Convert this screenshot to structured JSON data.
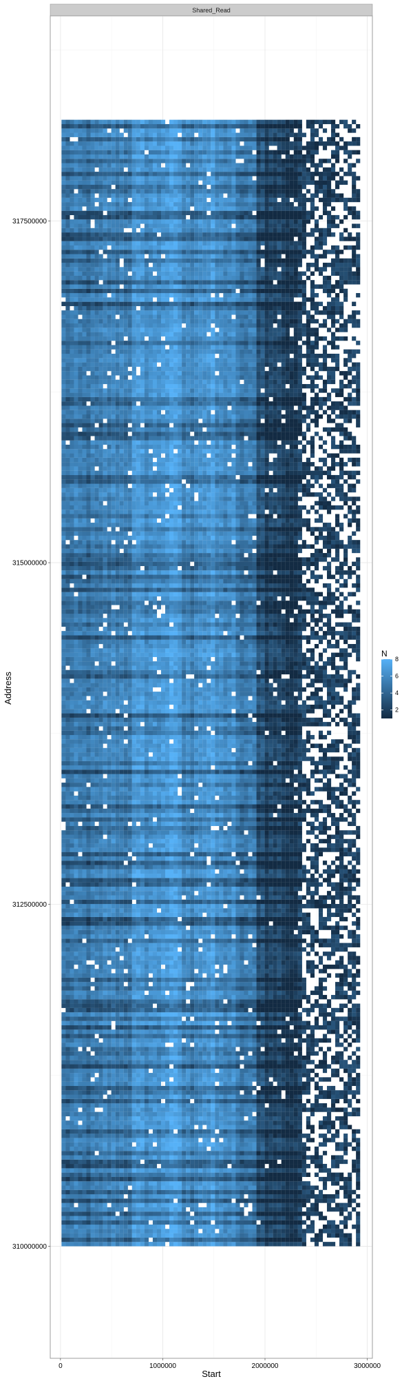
{
  "chart_data": {
    "type": "heatmap",
    "facet_label": "Shared_Read",
    "xlabel": "Start",
    "ylabel": "Address",
    "xlim": [
      -100000,
      3050000
    ],
    "ylim": [
      309180000,
      319000000
    ],
    "x_ticks": [
      0,
      1000000,
      2000000,
      3000000
    ],
    "x_tick_labels": [
      "0",
      "1000000",
      "2000000",
      "3000000"
    ],
    "y_ticks": [
      310000000,
      312500000,
      315000000,
      317500000
    ],
    "y_tick_labels": [
      "310000000",
      "312500000",
      "315000000",
      "317500000"
    ],
    "data_x_range": [
      10000,
      2930000
    ],
    "data_y_range": [
      310000000,
      318240000
    ],
    "dense_region_end_x": 2370000,
    "grid": true,
    "color_scale": {
      "title": "N",
      "low": 1,
      "high": 8,
      "low_color": "#132B43",
      "high_color": "#56B1F7",
      "breaks": [
        2,
        4,
        6,
        8
      ],
      "break_labels": [
        "2",
        "4",
        "6",
        "8"
      ]
    },
    "column_profile": {
      "x_breaks": [
        10000,
        400000,
        700000,
        1000000,
        1200000,
        1300000,
        1500000,
        1700000,
        1900000,
        2000000,
        2200000,
        2370000,
        2930000
      ],
      "mean_n": [
        5.2,
        5.8,
        6.6,
        7.2,
        6.0,
        6.8,
        6.3,
        5.2,
        3.5,
        2.6,
        2.0,
        1.6
      ]
    },
    "legend_position": "right"
  }
}
